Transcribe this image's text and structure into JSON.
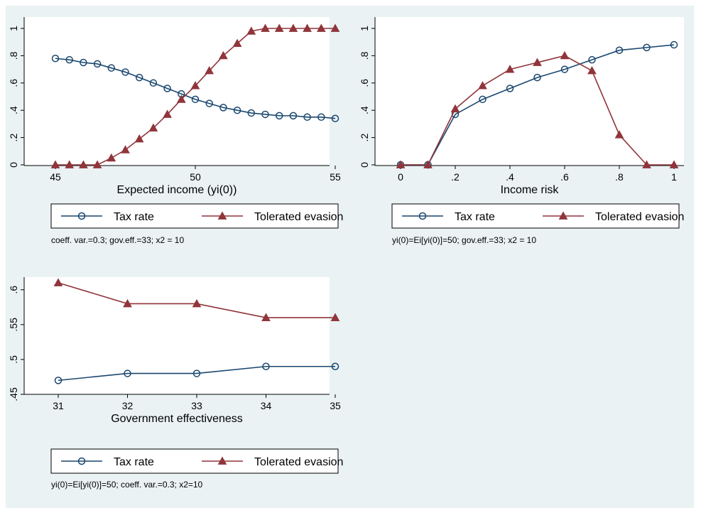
{
  "colors": {
    "background": "#eaf2f3",
    "plot_background": "#ffffff",
    "tax_rate": "#1a476f",
    "tolerated_evasion": "#90353b"
  },
  "chart_data": [
    {
      "type": "line",
      "title": "",
      "xlabel": "Expected income (yi(0))",
      "ylabel": "",
      "xlim": [
        45,
        55
      ],
      "ylim": [
        0,
        1
      ],
      "xticks": [
        45,
        50,
        55
      ],
      "xtick_labels": [
        "45",
        "50",
        "55"
      ],
      "yticks": [
        0,
        0.2,
        0.4,
        0.6,
        0.8,
        1
      ],
      "ytick_labels": [
        "0",
        ".2",
        ".4",
        ".6",
        ".8",
        "1"
      ],
      "grid": false,
      "legend": {
        "placement": "bottom",
        "entries": [
          "Tax rate",
          "Tolerated evasion"
        ]
      },
      "note": "coeff. var.=0.3; gov.eff.=33; x2 = 10",
      "series": [
        {
          "name": "Tax rate",
          "marker": "circle-hollow",
          "color": "#1a476f",
          "x": [
            45,
            45.5,
            46,
            46.5,
            47,
            47.5,
            48,
            48.5,
            49,
            49.5,
            50,
            50.5,
            51,
            51.5,
            52,
            52.5,
            53,
            53.5,
            54,
            54.5,
            55
          ],
          "y": [
            0.78,
            0.77,
            0.75,
            0.74,
            0.71,
            0.68,
            0.64,
            0.6,
            0.56,
            0.52,
            0.48,
            0.45,
            0.42,
            0.4,
            0.38,
            0.37,
            0.36,
            0.36,
            0.35,
            0.35,
            0.34
          ]
        },
        {
          "name": "Tolerated evasion",
          "marker": "triangle-filled",
          "color": "#90353b",
          "x": [
            45,
            45.5,
            46,
            46.5,
            47,
            47.5,
            48,
            48.5,
            49,
            49.5,
            50,
            50.5,
            51,
            51.5,
            52,
            52.5,
            53,
            53.5,
            54,
            54.5,
            55
          ],
          "y": [
            0,
            0,
            0,
            0,
            0.05,
            0.11,
            0.19,
            0.27,
            0.37,
            0.48,
            0.58,
            0.69,
            0.8,
            0.89,
            0.98,
            1,
            1,
            1,
            1,
            1,
            1
          ]
        }
      ]
    },
    {
      "type": "line",
      "title": "",
      "xlabel": "Income risk",
      "ylabel": "",
      "xlim": [
        0,
        1
      ],
      "ylim": [
        0,
        1
      ],
      "xticks": [
        0,
        0.2,
        0.4,
        0.6,
        0.8,
        1
      ],
      "xtick_labels": [
        "0",
        ".2",
        ".4",
        ".6",
        ".8",
        "1"
      ],
      "yticks": [
        0,
        0.2,
        0.4,
        0.6,
        0.8,
        1
      ],
      "ytick_labels": [
        "0",
        ".2",
        ".4",
        ".6",
        ".8",
        "1"
      ],
      "grid": false,
      "legend": {
        "placement": "bottom",
        "entries": [
          "Tax rate",
          "Tolerated evasion"
        ]
      },
      "note": "yi(0)=Ei[yi(0)]=50; gov.eff.=33; x2 = 10",
      "series": [
        {
          "name": "Tax rate",
          "marker": "circle-hollow",
          "color": "#1a476f",
          "x": [
            0,
            0.1,
            0.2,
            0.3,
            0.4,
            0.5,
            0.6,
            0.7,
            0.8,
            0.9,
            1
          ],
          "y": [
            0,
            0,
            0.37,
            0.48,
            0.56,
            0.64,
            0.7,
            0.77,
            0.84,
            0.86,
            0.88
          ]
        },
        {
          "name": "Tolerated evasion",
          "marker": "triangle-filled",
          "color": "#90353b",
          "x": [
            0,
            0.1,
            0.2,
            0.3,
            0.4,
            0.5,
            0.6,
            0.7,
            0.8,
            0.9,
            1
          ],
          "y": [
            0,
            0,
            0.41,
            0.58,
            0.7,
            0.75,
            0.8,
            0.69,
            0.22,
            0,
            0
          ]
        }
      ]
    },
    {
      "type": "line",
      "title": "",
      "xlabel": "Government effectiveness",
      "ylabel": "",
      "xlim": [
        31,
        35
      ],
      "ylim": [
        0.45,
        0.61
      ],
      "xticks": [
        31,
        32,
        33,
        34,
        35
      ],
      "xtick_labels": [
        "31",
        "32",
        "33",
        "34",
        "35"
      ],
      "yticks": [
        0.45,
        0.5,
        0.55,
        0.6
      ],
      "ytick_labels": [
        ".45",
        ".5",
        ".55",
        ".6"
      ],
      "grid": false,
      "legend": {
        "placement": "bottom",
        "entries": [
          "Tax rate",
          "Tolerated evasion"
        ]
      },
      "note": "yi(0)=Ei[yi(0)]=50; coeff. var.=0.3; x2=10",
      "series": [
        {
          "name": "Tax rate",
          "marker": "circle-hollow",
          "color": "#1a476f",
          "x": [
            31,
            32,
            33,
            34,
            35
          ],
          "y": [
            0.47,
            0.48,
            0.48,
            0.49,
            0.49
          ]
        },
        {
          "name": "Tolerated evasion",
          "marker": "triangle-filled",
          "color": "#90353b",
          "x": [
            31,
            32,
            33,
            34,
            35
          ],
          "y": [
            0.61,
            0.58,
            0.58,
            0.56,
            0.56
          ]
        }
      ]
    }
  ]
}
